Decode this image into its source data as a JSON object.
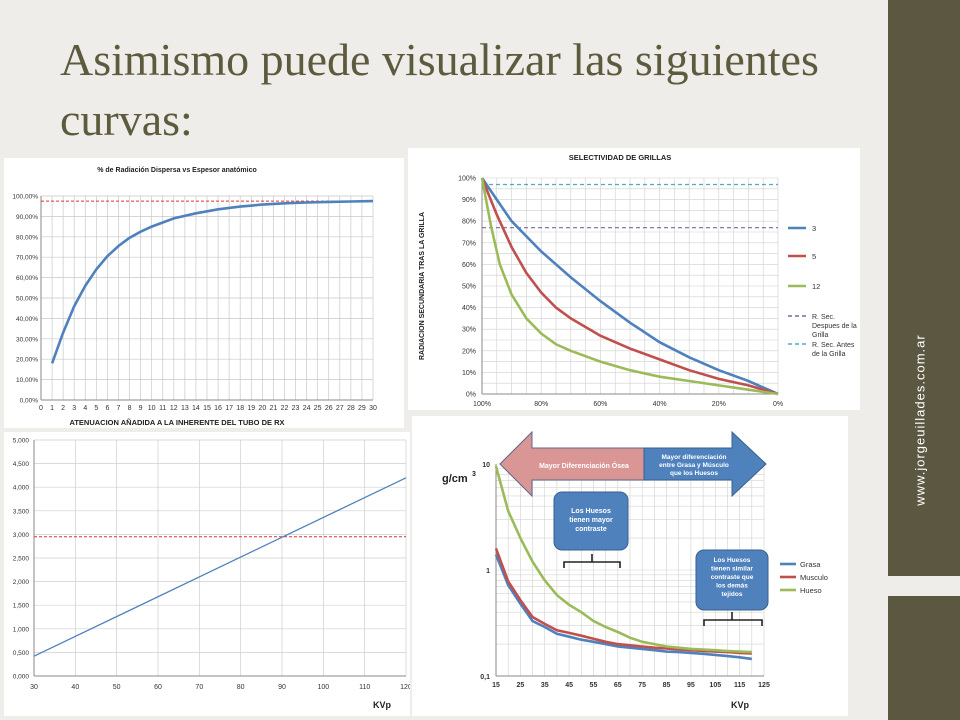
{
  "slide": {
    "title": "Asimismo puede visualizar las siguientes curvas:",
    "site": "www.jorgeuillades.com.ar"
  },
  "colors": {
    "title": "#5d5a3e",
    "sidebar": "#5b5741",
    "background": "#eeede9",
    "blue": "#4f81bd",
    "red": "#c0504d",
    "green": "#9bbb59",
    "purple_dash": "#8064a2",
    "cyan_dash": "#4bacc6",
    "red_dash": "#e03030"
  },
  "chart_data": [
    {
      "type": "line",
      "title": "% de Radiación Dispersa vs Espesor anatómico",
      "xlabel": "ATENUACION AÑADIDA A LA INHERENTE DEL TUBO DE RX",
      "ylabel": "",
      "xlim": [
        0,
        30
      ],
      "ylim": [
        0,
        100
      ],
      "xticks": [
        "0",
        "1",
        "2",
        "3",
        "4",
        "5",
        "6",
        "7",
        "8",
        "9",
        "10",
        "11",
        "12",
        "13",
        "14",
        "15",
        "16",
        "17",
        "18",
        "19",
        "20",
        "21",
        "22",
        "23",
        "24",
        "25",
        "26",
        "27",
        "28",
        "29",
        "30"
      ],
      "yticks": [
        "0,00%",
        "10,00%",
        "20,00%",
        "30,00%",
        "40,00%",
        "50,00%",
        "60,00%",
        "70,00%",
        "80,00%",
        "90,00%",
        "100,00%"
      ],
      "grid": true,
      "series": [
        {
          "x": [
            1,
            2,
            3,
            4,
            5,
            6,
            7,
            8,
            9,
            10,
            12,
            14,
            16,
            18,
            20,
            22,
            24,
            26,
            28,
            30
          ],
          "y": [
            18,
            33,
            46,
            56,
            64,
            70.5,
            75.5,
            79.5,
            82.5,
            85,
            89,
            91.5,
            93.5,
            94.8,
            95.8,
            96.4,
            96.8,
            97.1,
            97.3,
            97.5
          ]
        }
      ],
      "reference_line": {
        "y": 97.5,
        "style": "dashed-red"
      }
    },
    {
      "type": "line",
      "title": "SELECTIVIDAD DE GRILLAS",
      "xlabel": "",
      "ylabel": "RADIACION SECUNDARIA TRAS LA GRILLA",
      "xticks": [
        "100%",
        "80%",
        "60%",
        "40%",
        "20%",
        "0%"
      ],
      "yticks": [
        "0%",
        "10%",
        "20%",
        "30%",
        "40%",
        "50%",
        "60%",
        "70%",
        "80%",
        "90%",
        "100%"
      ],
      "xlim": [
        100,
        0
      ],
      "ylim": [
        0,
        100
      ],
      "grid": true,
      "legend": "right",
      "series": [
        {
          "name": "3",
          "x": [
            100,
            90,
            80,
            70,
            60,
            50,
            40,
            30,
            20,
            10,
            0
          ],
          "y": [
            100,
            80,
            66,
            54,
            43,
            33,
            24,
            17,
            11,
            6,
            0
          ]
        },
        {
          "name": "5",
          "x": [
            100,
            95,
            90,
            85,
            80,
            75,
            70,
            60,
            50,
            40,
            30,
            20,
            10,
            0
          ],
          "y": [
            100,
            83,
            68,
            56,
            47,
            40,
            35,
            27,
            21,
            16,
            11,
            7,
            4,
            0
          ]
        },
        {
          "name": "12",
          "x": [
            100,
            97,
            94,
            90,
            85,
            80,
            75,
            70,
            60,
            50,
            40,
            30,
            20,
            10,
            0
          ],
          "y": [
            100,
            78,
            60,
            46,
            35,
            28,
            23,
            20,
            15,
            11,
            8,
            6,
            4,
            2,
            0
          ]
        }
      ],
      "reference_lines": [
        {
          "name": "R. Sec. Despues de la Grilla",
          "y": 77,
          "style": "dashed-purple"
        },
        {
          "name": "R. Sec. Antes de la Grilla",
          "y": 97,
          "style": "dashed-cyan"
        }
      ]
    },
    {
      "type": "line",
      "title": "",
      "xlabel": "KVp",
      "ylabel": "",
      "xlim": [
        30,
        120
      ],
      "ylim": [
        0,
        5
      ],
      "xticks": [
        "30",
        "40",
        "50",
        "60",
        "70",
        "80",
        "90",
        "100",
        "110",
        "120"
      ],
      "yticks": [
        "0,000",
        "0,500",
        "1,000",
        "1,500",
        "2,000",
        "2,500",
        "3,000",
        "3,500",
        "4,000",
        "4,500",
        "5,000"
      ],
      "grid": true,
      "series": [
        {
          "x": [
            30,
            120
          ],
          "y": [
            0.42,
            4.2
          ]
        }
      ],
      "reference_line": {
        "y": 2.95,
        "style": "dashed-red"
      }
    },
    {
      "type": "line",
      "title": "",
      "xlabel": "KVp",
      "ylabel": "g/cm3",
      "ylabel_main": "g/cm",
      "ylabel_sup": "3",
      "yscale": "log",
      "xlim": [
        15,
        125
      ],
      "ylim": [
        0.1,
        10
      ],
      "xticks": [
        "15",
        "25",
        "35",
        "45",
        "55",
        "65",
        "75",
        "85",
        "95",
        "105",
        "115",
        "125"
      ],
      "yticks": [
        "0,1",
        "1",
        "10"
      ],
      "grid": true,
      "legend": "right",
      "series": [
        {
          "name": "Grasa",
          "x": [
            15,
            20,
            25,
            30,
            35,
            40,
            45,
            50,
            55,
            60,
            65,
            70,
            75,
            80,
            85,
            90,
            95,
            100,
            105,
            110,
            115,
            120
          ],
          "y": [
            1.4,
            0.72,
            0.48,
            0.33,
            0.29,
            0.25,
            0.235,
            0.22,
            0.21,
            0.2,
            0.19,
            0.185,
            0.18,
            0.175,
            0.17,
            0.168,
            0.165,
            0.162,
            0.158,
            0.154,
            0.15,
            0.145
          ]
        },
        {
          "name": "Musculo",
          "x": [
            15,
            20,
            25,
            30,
            35,
            40,
            45,
            50,
            55,
            60,
            65,
            70,
            75,
            80,
            85,
            90,
            95,
            100,
            105,
            110,
            115,
            120
          ],
          "y": [
            1.6,
            0.78,
            0.52,
            0.36,
            0.31,
            0.27,
            0.255,
            0.24,
            0.225,
            0.21,
            0.2,
            0.195,
            0.19,
            0.185,
            0.182,
            0.178,
            0.175,
            0.172,
            0.17,
            0.168,
            0.165,
            0.163
          ]
        },
        {
          "name": "Hueso",
          "x": [
            15,
            20,
            25,
            30,
            35,
            40,
            45,
            50,
            55,
            60,
            65,
            70,
            75,
            80,
            85,
            90,
            95,
            100,
            105,
            110,
            115,
            120
          ],
          "y": [
            9.5,
            3.6,
            2.0,
            1.2,
            0.8,
            0.58,
            0.47,
            0.4,
            0.33,
            0.29,
            0.26,
            0.23,
            0.21,
            0.2,
            0.19,
            0.185,
            0.18,
            0.178,
            0.175,
            0.172,
            0.17,
            0.168
          ]
        }
      ],
      "annotations": {
        "arrow_left": "Mayor Diferenciación Ósea",
        "arrow_right_lines": [
          "Mayor diferenciación",
          "entre Grasa y Músculo",
          "que los Huesos"
        ],
        "box1_lines": [
          "Los Huesos",
          "tienen mayor",
          "contraste"
        ],
        "box2_lines": [
          "Los Huesos",
          "tienen similar",
          "contraste que",
          "los demás",
          "tejidos"
        ]
      }
    }
  ]
}
